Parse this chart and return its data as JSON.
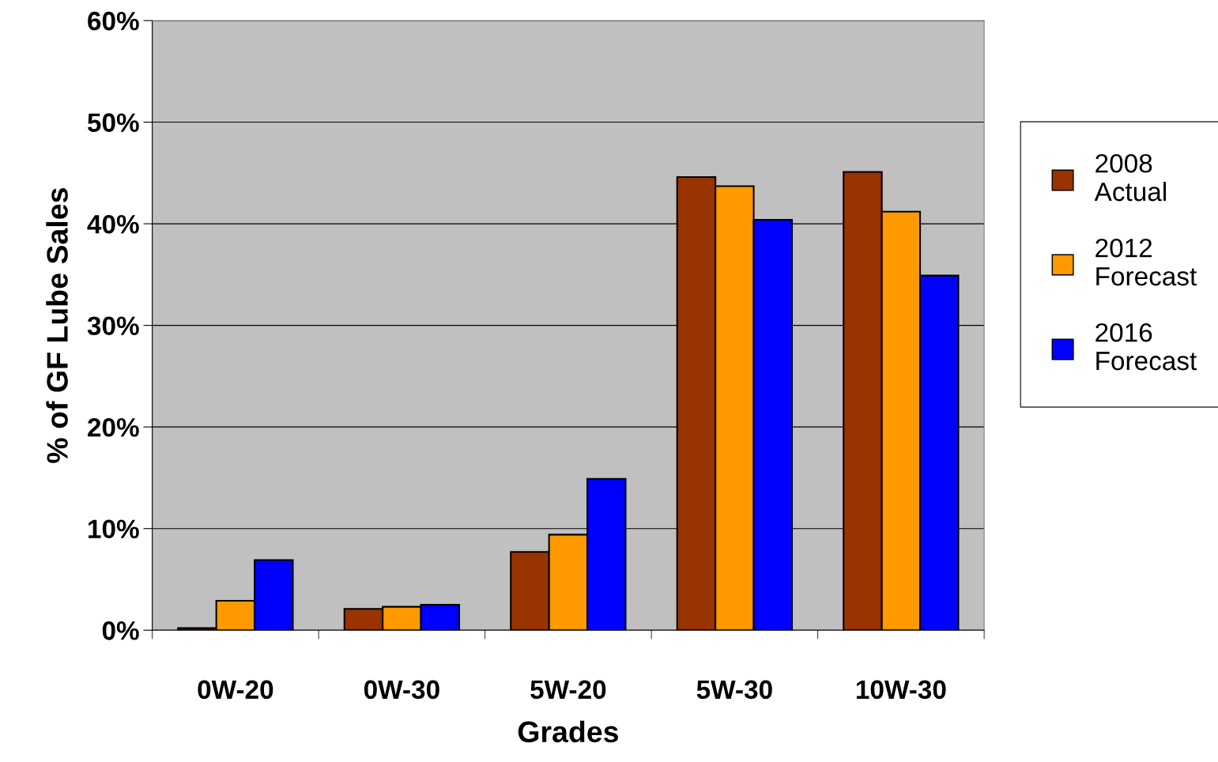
{
  "chart_data": {
    "type": "bar",
    "xlabel": "Grades",
    "ylabel": "% of GF Lube Sales",
    "categories": [
      "0W-20",
      "0W-30",
      "5W-20",
      "5W-30",
      "10W-30"
    ],
    "series": [
      {
        "name": "2008 Actual",
        "color": "#993300",
        "values": [
          0.2,
          2.1,
          7.7,
          44.6,
          45.1
        ]
      },
      {
        "name": "2012 Forecast",
        "color": "#ff9900",
        "values": [
          2.9,
          2.3,
          9.4,
          43.7,
          41.2
        ]
      },
      {
        "name": "2016 Forecast",
        "color": "#0000ff",
        "values": [
          6.9,
          2.5,
          14.9,
          40.4,
          34.9
        ]
      }
    ],
    "ylim": [
      0,
      60
    ],
    "yticks": [
      {
        "value": 0,
        "label": "0%"
      },
      {
        "value": 10,
        "label": "10%"
      },
      {
        "value": 20,
        "label": "20%"
      },
      {
        "value": 30,
        "label": "30%"
      },
      {
        "value": 40,
        "label": "40%"
      },
      {
        "value": 50,
        "label": "50%"
      },
      {
        "value": 60,
        "label": "60%"
      }
    ],
    "grid": "y",
    "legend": "right"
  }
}
